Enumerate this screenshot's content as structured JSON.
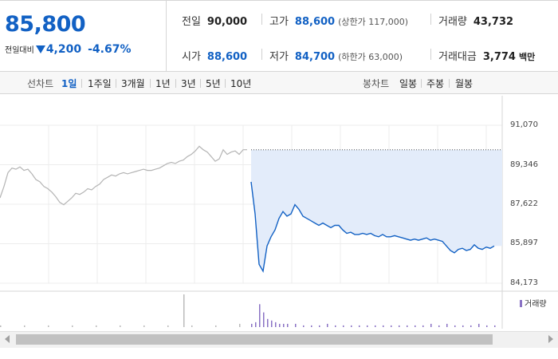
{
  "summary": {
    "price": "85,800",
    "change_label": "전일대비",
    "change_amount": "4,200",
    "change_pct": "-4.67%"
  },
  "stats": {
    "prev_close_label": "전일",
    "prev_close": "90,000",
    "high_label": "고가",
    "high": "88,600",
    "upper_limit": "(상한가 117,000)",
    "volume_label": "거래량",
    "volume": "43,732",
    "open_label": "시가",
    "open": "88,600",
    "low_label": "저가",
    "low": "84,700",
    "lower_limit": "(하한가 63,000)",
    "amount_label": "거래대금",
    "amount": "3,774",
    "amount_unit": "백만"
  },
  "tabs": {
    "line_label": "선차트",
    "line_items": [
      "1일",
      "1주일",
      "3개월",
      "1년",
      "3년",
      "5년",
      "10년"
    ],
    "candle_label": "봉차트",
    "candle_items": [
      "일봉",
      "주봉",
      "월봉"
    ]
  },
  "colors": {
    "down": "#1261c4",
    "prev_day_line": "#b4b4b4",
    "area_fill": "#e3ecfa",
    "volume": "#8a72c4"
  },
  "chart_data": {
    "type": "line",
    "title": "",
    "xlabel": "",
    "ylabel": "",
    "ylim": [
      84173,
      91070
    ],
    "y_ticks": [
      "91,070",
      "89,346",
      "87,622",
      "85,897",
      "84,173"
    ],
    "grid": true,
    "reference_line": 90000,
    "series": [
      {
        "points": [
          [
            0,
            87900
          ],
          [
            1,
            88400
          ],
          [
            2,
            89000
          ],
          [
            3,
            89200
          ],
          [
            4,
            89150
          ],
          [
            5,
            89250
          ],
          [
            6,
            89100
          ],
          [
            7,
            89150
          ],
          [
            8,
            88950
          ],
          [
            9,
            88700
          ],
          [
            10,
            88600
          ],
          [
            11,
            88400
          ],
          [
            12,
            88300
          ],
          [
            13,
            88150
          ],
          [
            14,
            87950
          ],
          [
            15,
            87700
          ],
          [
            16,
            87600
          ],
          [
            17,
            87750
          ],
          [
            18,
            87900
          ],
          [
            19,
            88100
          ],
          [
            20,
            88050
          ],
          [
            21,
            88150
          ],
          [
            22,
            88300
          ],
          [
            23,
            88250
          ],
          [
            24,
            88400
          ],
          [
            25,
            88500
          ],
          [
            26,
            88700
          ],
          [
            27,
            88800
          ],
          [
            28,
            88900
          ],
          [
            29,
            88850
          ],
          [
            30,
            88950
          ],
          [
            31,
            89000
          ],
          [
            32,
            88950
          ],
          [
            33,
            89000
          ],
          [
            34,
            89050
          ],
          [
            35,
            89100
          ],
          [
            36,
            89150
          ],
          [
            37,
            89100
          ],
          [
            38,
            89100
          ],
          [
            39,
            89150
          ],
          [
            40,
            89200
          ],
          [
            41,
            89300
          ],
          [
            42,
            89400
          ],
          [
            43,
            89450
          ],
          [
            44,
            89400
          ],
          [
            45,
            89500
          ],
          [
            46,
            89550
          ],
          [
            47,
            89700
          ],
          [
            48,
            89800
          ],
          [
            49,
            89950
          ],
          [
            50,
            90150
          ],
          [
            51,
            90000
          ],
          [
            52,
            89900
          ],
          [
            53,
            89700
          ],
          [
            54,
            89500
          ],
          [
            55,
            89600
          ],
          [
            56,
            90000
          ],
          [
            57,
            89800
          ],
          [
            58,
            89900
          ],
          [
            59,
            89950
          ],
          [
            60,
            89800
          ],
          [
            61,
            90000
          ],
          [
            62,
            90000
          ]
        ]
      },
      {
        "points": [
          [
            63,
            88600
          ],
          [
            64,
            87200
          ],
          [
            65,
            85000
          ],
          [
            66,
            84700
          ],
          [
            67,
            85800
          ],
          [
            68,
            86200
          ],
          [
            69,
            86500
          ],
          [
            70,
            87000
          ],
          [
            71,
            87300
          ],
          [
            72,
            87100
          ],
          [
            73,
            87200
          ],
          [
            74,
            87600
          ],
          [
            75,
            87400
          ],
          [
            76,
            87100
          ],
          [
            77,
            87000
          ],
          [
            78,
            86900
          ],
          [
            79,
            86800
          ],
          [
            80,
            86700
          ],
          [
            81,
            86800
          ],
          [
            82,
            86700
          ],
          [
            83,
            86600
          ],
          [
            84,
            86700
          ],
          [
            85,
            86700
          ],
          [
            86,
            86500
          ],
          [
            87,
            86350
          ],
          [
            88,
            86400
          ],
          [
            89,
            86300
          ],
          [
            90,
            86300
          ],
          [
            91,
            86350
          ],
          [
            92,
            86300
          ],
          [
            93,
            86350
          ],
          [
            94,
            86250
          ],
          [
            95,
            86200
          ],
          [
            96,
            86300
          ],
          [
            97,
            86200
          ],
          [
            98,
            86200
          ],
          [
            99,
            86250
          ],
          [
            100,
            86200
          ],
          [
            101,
            86150
          ],
          [
            102,
            86100
          ],
          [
            103,
            86050
          ],
          [
            104,
            86100
          ],
          [
            105,
            86050
          ],
          [
            106,
            86100
          ],
          [
            107,
            86150
          ],
          [
            108,
            86050
          ],
          [
            109,
            86100
          ],
          [
            110,
            86050
          ],
          [
            111,
            86000
          ],
          [
            112,
            85800
          ],
          [
            113,
            85600
          ],
          [
            114,
            85500
          ],
          [
            115,
            85650
          ],
          [
            116,
            85700
          ],
          [
            117,
            85600
          ],
          [
            118,
            85650
          ],
          [
            119,
            85850
          ],
          [
            120,
            85700
          ],
          [
            121,
            85650
          ],
          [
            122,
            85750
          ],
          [
            123,
            85700
          ],
          [
            124,
            85800
          ]
        ]
      }
    ],
    "x_max": 126,
    "volume_label": "거래량",
    "volume": [
      [
        63,
        2
      ],
      [
        64,
        3
      ],
      [
        65,
        14
      ],
      [
        66,
        9
      ],
      [
        67,
        5
      ],
      [
        68,
        4
      ],
      [
        69,
        3
      ],
      [
        70,
        2
      ],
      [
        71,
        2
      ],
      [
        72,
        2
      ],
      [
        74,
        2
      ],
      [
        76,
        1
      ],
      [
        78,
        1
      ],
      [
        80,
        1
      ],
      [
        82,
        2
      ],
      [
        84,
        1
      ],
      [
        86,
        1
      ],
      [
        88,
        1
      ],
      [
        90,
        1
      ],
      [
        92,
        1
      ],
      [
        94,
        1
      ],
      [
        96,
        1
      ],
      [
        98,
        1
      ],
      [
        100,
        1
      ],
      [
        102,
        1
      ],
      [
        104,
        1
      ],
      [
        106,
        1
      ],
      [
        108,
        2
      ],
      [
        110,
        1
      ],
      [
        112,
        2
      ],
      [
        114,
        1
      ],
      [
        116,
        1
      ],
      [
        118,
        1
      ],
      [
        120,
        2
      ],
      [
        122,
        1
      ],
      [
        124,
        1
      ],
      [
        0,
        1
      ],
      [
        6,
        1
      ],
      [
        12,
        1
      ],
      [
        18,
        1
      ],
      [
        24,
        1
      ],
      [
        30,
        1
      ],
      [
        36,
        1
      ],
      [
        42,
        1
      ],
      [
        46,
        20
      ],
      [
        48,
        1
      ],
      [
        54,
        1
      ],
      [
        60,
        2
      ]
    ],
    "volume_max": 20
  }
}
